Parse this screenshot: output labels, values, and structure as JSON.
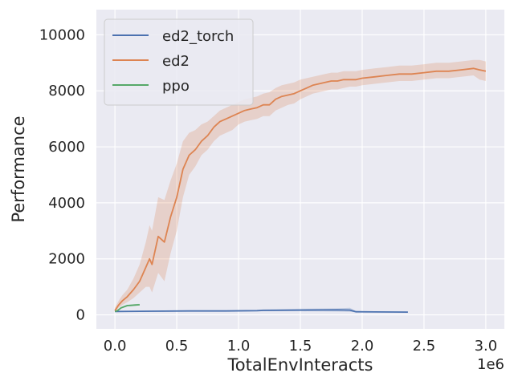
{
  "chart_data": {
    "type": "line",
    "title": "",
    "xlabel": "TotalEnvInteracts",
    "ylabel": "Performance",
    "x_scale_label": "1e6",
    "xlim": [
      -0.15,
      3.15
    ],
    "ylim": [
      -500,
      10900
    ],
    "xticks": [
      0.0,
      0.5,
      1.0,
      1.5,
      2.0,
      2.5,
      3.0
    ],
    "xtick_labels": [
      "0.0",
      "0.5",
      "1.0",
      "1.5",
      "2.0",
      "2.5",
      "3.0"
    ],
    "yticks": [
      0,
      2000,
      4000,
      6000,
      8000,
      10000
    ],
    "ytick_labels": [
      "0",
      "2000",
      "4000",
      "6000",
      "8000",
      "10000"
    ],
    "grid": true,
    "background": "#eaeaf2",
    "legend_position": "upper-left",
    "series": [
      {
        "name": "ed2_torch",
        "color": "#4c72b0",
        "x": [
          0.0,
          0.3,
          0.6,
          0.9,
          1.15,
          1.2,
          1.5,
          1.8,
          1.9,
          1.95,
          2.1,
          2.37
        ],
        "y": [
          120,
          130,
          140,
          140,
          150,
          160,
          170,
          180,
          170,
          110,
          105,
          100
        ],
        "band_lo": [
          100,
          110,
          120,
          120,
          130,
          130,
          130,
          120,
          110,
          90,
          90,
          90
        ],
        "band_hi": [
          140,
          150,
          160,
          160,
          170,
          200,
          220,
          230,
          250,
          140,
          120,
          110
        ]
      },
      {
        "name": "ed2",
        "color": "#dd8452",
        "x": [
          0.0,
          0.03,
          0.06,
          0.1,
          0.15,
          0.2,
          0.25,
          0.28,
          0.3,
          0.35,
          0.4,
          0.45,
          0.5,
          0.55,
          0.6,
          0.65,
          0.7,
          0.75,
          0.8,
          0.85,
          0.9,
          0.95,
          1.0,
          1.05,
          1.1,
          1.15,
          1.2,
          1.25,
          1.3,
          1.35,
          1.4,
          1.45,
          1.5,
          1.55,
          1.6,
          1.65,
          1.7,
          1.75,
          1.8,
          1.85,
          1.9,
          1.95,
          2.0,
          2.1,
          2.2,
          2.3,
          2.4,
          2.5,
          2.6,
          2.7,
          2.8,
          2.9,
          2.95,
          3.0
        ],
        "y": [
          150,
          350,
          500,
          650,
          900,
          1200,
          1700,
          2000,
          1800,
          2800,
          2600,
          3500,
          4200,
          5200,
          5700,
          5900,
          6200,
          6400,
          6700,
          6900,
          7000,
          7100,
          7200,
          7300,
          7350,
          7400,
          7500,
          7500,
          7700,
          7800,
          7850,
          7900,
          8000,
          8100,
          8200,
          8250,
          8300,
          8350,
          8350,
          8400,
          8400,
          8400,
          8450,
          8500,
          8550,
          8600,
          8600,
          8650,
          8700,
          8700,
          8750,
          8800,
          8750,
          8700
        ],
        "band_lo": [
          100,
          250,
          350,
          450,
          600,
          800,
          1000,
          1000,
          800,
          1500,
          1200,
          2200,
          3000,
          4200,
          5000,
          5300,
          5700,
          5900,
          6200,
          6400,
          6500,
          6600,
          6800,
          6900,
          6950,
          7000,
          7100,
          7100,
          7300,
          7400,
          7500,
          7550,
          7700,
          7800,
          7900,
          7950,
          8000,
          8050,
          8050,
          8100,
          8150,
          8150,
          8200,
          8250,
          8300,
          8350,
          8350,
          8400,
          8450,
          8450,
          8500,
          8550,
          8400,
          8350
        ],
        "band_hi": [
          250,
          500,
          700,
          900,
          1300,
          1800,
          2600,
          3200,
          3000,
          4200,
          4100,
          4800,
          5400,
          6200,
          6500,
          6600,
          6800,
          6900,
          7100,
          7300,
          7400,
          7500,
          7600,
          7700,
          7750,
          7800,
          7900,
          7950,
          8100,
          8200,
          8250,
          8300,
          8400,
          8450,
          8500,
          8550,
          8600,
          8650,
          8650,
          8700,
          8700,
          8700,
          8750,
          8800,
          8850,
          8900,
          8900,
          8950,
          9000,
          9000,
          9050,
          9100,
          9100,
          9050
        ]
      },
      {
        "name": "ppo",
        "color": "#55a868",
        "x": [
          0.0,
          0.02,
          0.05,
          0.08,
          0.1,
          0.13,
          0.16,
          0.19,
          0.2
        ],
        "y": [
          120,
          150,
          250,
          300,
          330,
          340,
          350,
          360,
          360
        ],
        "band_lo": [
          100,
          130,
          220,
          270,
          300,
          310,
          320,
          330,
          330
        ],
        "band_hi": [
          140,
          170,
          280,
          330,
          360,
          370,
          380,
          390,
          390
        ]
      }
    ]
  }
}
